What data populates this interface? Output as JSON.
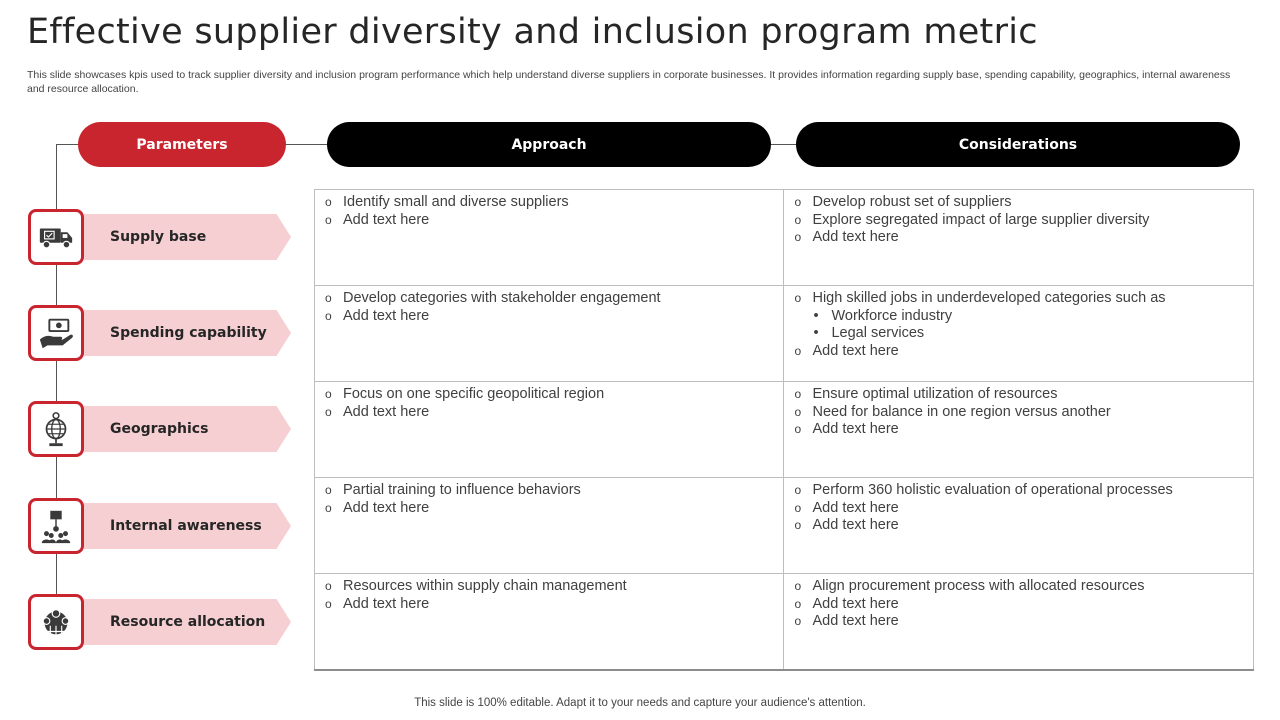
{
  "title": "Effective supplier diversity and inclusion program metric",
  "subtitle": "This slide showcases kpis used to track supplier diversity and inclusion program performance which help understand diverse suppliers in corporate businesses. It provides information regarding supply base, spending capability, geographics, internal awareness and resource allocation.",
  "headers": {
    "parameters": "Parameters",
    "approach": "Approach",
    "considerations": "Considerations"
  },
  "rows": [
    {
      "label": "Supply base",
      "icon": "truck-icon",
      "approach": [
        "Identify small and diverse suppliers",
        "Add text here"
      ],
      "considerations": [
        "Develop robust set of suppliers",
        "Explore segregated impact of large supplier diversity",
        "Add text here"
      ]
    },
    {
      "label": "Spending capability",
      "icon": "money-hand-icon",
      "approach": [
        "Develop categories with stakeholder engagement",
        "Add text here"
      ],
      "considerations_head": "High skilled jobs in underdeveloped categories such as",
      "considerations_sub": [
        "Workforce industry",
        "Legal services"
      ],
      "considerations_tail": "Add text here"
    },
    {
      "label": "Geographics",
      "icon": "globe-icon",
      "approach": [
        "Focus on one specific geopolitical region",
        "Add text here"
      ],
      "considerations": [
        "Ensure optimal utilization of resources",
        "Need for balance in one region versus another",
        "Add text here"
      ]
    },
    {
      "label": "Internal awareness",
      "icon": "audience-icon",
      "approach": [
        "Partial training to influence behaviors",
        "Add text here"
      ],
      "considerations": [
        "Perform 360 holistic evaluation of operational processes",
        "Add text here",
        "Add text here"
      ]
    },
    {
      "label": "Resource allocation",
      "icon": "team-globe-icon",
      "approach": [
        "Resources within supply chain management",
        "Add text here"
      ],
      "considerations": [
        "Align procurement process with allocated resources",
        "Add text here",
        "Add text here"
      ]
    }
  ],
  "footer": "This slide is 100% editable. Adapt it to your needs and capture your audience's attention.",
  "colors": {
    "accent": "#c9252f",
    "label_bg": "#f5cfd1",
    "header_dark": "#000000"
  }
}
